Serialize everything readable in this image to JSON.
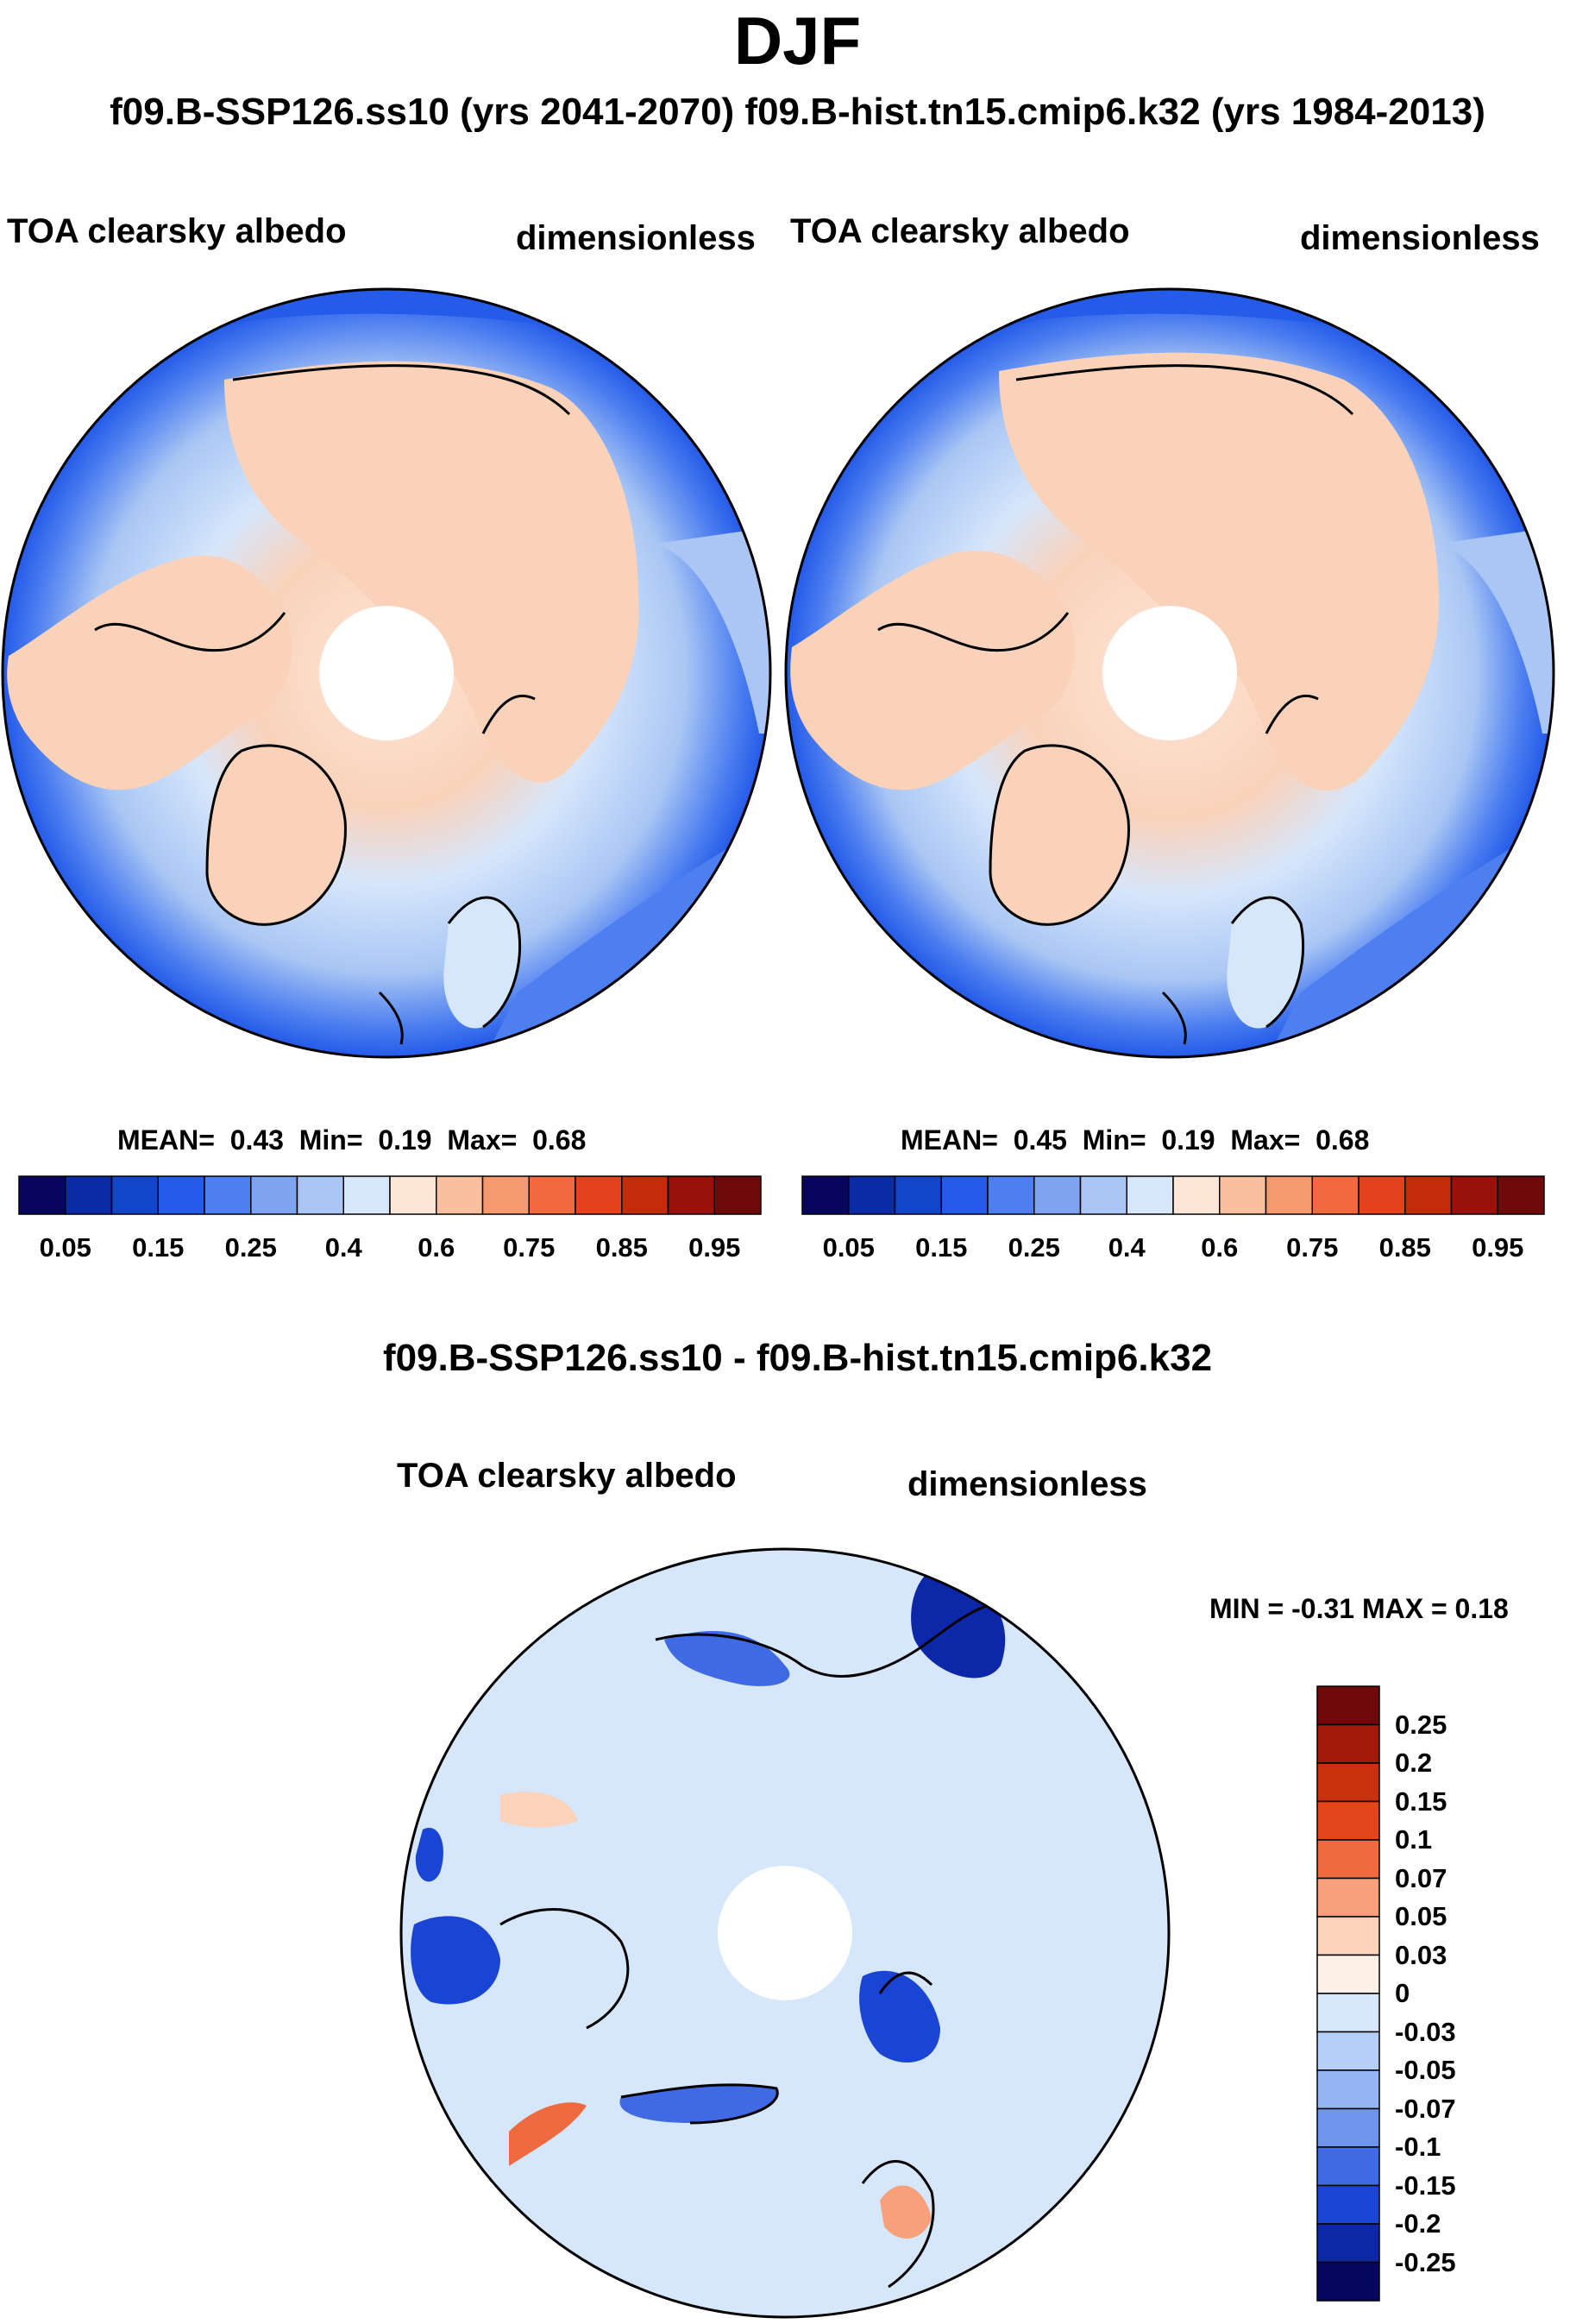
{
  "figure": {
    "season": "DJF",
    "subtitle": "f09.B-SSP126.ss10 (yrs 2041-2070)  f09.B-hist.tn15.cmip6.k32 (yrs 1984-2013)",
    "diff_title": "f09.B-SSP126.ss10 - f09.B-hist.tn15.cmip6.k32"
  },
  "panels": {
    "left": {
      "variable": "TOA clearsky albedo",
      "units": "dimensionless",
      "stats": {
        "mean_label": "MEAN=",
        "mean": "0.43",
        "min_label": "Min=",
        "min": "0.19",
        "max_label": "Max=",
        "max": "0.68"
      }
    },
    "right": {
      "variable": "TOA clearsky albedo",
      "units": "dimensionless",
      "stats": {
        "mean_label": "MEAN=",
        "mean": "0.45",
        "min_label": "Min=",
        "min": "0.19",
        "max_label": "Max=",
        "max": "0.68"
      }
    },
    "diff": {
      "variable": "TOA clearsky albedo",
      "units": "dimensionless",
      "minmax": "MIN =  -0.31 MAX =   0.18"
    }
  },
  "chart_data": [
    {
      "type": "heatmap",
      "title": "TOA clearsky albedo",
      "case": "f09.B-SSP126.ss10 (yrs 2041-2070)",
      "projection": "polar stereographic (Northern Hemisphere)",
      "mean": 0.43,
      "min": 0.19,
      "max": 0.68,
      "colorbar": {
        "levels": [
          0.05,
          0.1,
          0.15,
          0.2,
          0.25,
          0.3,
          0.35,
          0.4,
          0.5,
          0.6,
          0.7,
          0.75,
          0.8,
          0.85,
          0.9,
          0.95
        ],
        "tick_labels": [
          "0.05",
          "0.15",
          "0.25",
          "0.4",
          "0.6",
          "0.75",
          "0.85",
          "0.95"
        ],
        "colors": [
          "#08065c",
          "#0a2aa6",
          "#1244cc",
          "#245be8",
          "#4d7ff0",
          "#7ea4f0",
          "#a9c6f4",
          "#d6e6fb",
          "#fde6d6",
          "#f9c0a0",
          "#f59970",
          "#f16a3f",
          "#e4421d",
          "#c22c0b",
          "#99110a",
          "#6e0a0a"
        ]
      }
    },
    {
      "type": "heatmap",
      "title": "TOA clearsky albedo",
      "case": "f09.B-hist.tn15.cmip6.k32 (yrs 1984-2013)",
      "projection": "polar stereographic (Northern Hemisphere)",
      "mean": 0.45,
      "min": 0.19,
      "max": 0.68,
      "colorbar": {
        "levels": [
          0.05,
          0.1,
          0.15,
          0.2,
          0.25,
          0.3,
          0.35,
          0.4,
          0.5,
          0.6,
          0.7,
          0.75,
          0.8,
          0.85,
          0.9,
          0.95
        ],
        "tick_labels": [
          "0.05",
          "0.15",
          "0.25",
          "0.4",
          "0.6",
          "0.75",
          "0.85",
          "0.95"
        ],
        "colors": [
          "#08065c",
          "#0a2aa6",
          "#1244cc",
          "#245be8",
          "#4d7ff0",
          "#7ea4f0",
          "#a9c6f4",
          "#d6e6fb",
          "#fde6d6",
          "#f9c0a0",
          "#f59970",
          "#f16a3f",
          "#e4421d",
          "#c22c0b",
          "#99110a",
          "#6e0a0a"
        ]
      }
    },
    {
      "type": "heatmap",
      "title": "TOA clearsky albedo",
      "case": "f09.B-SSP126.ss10 - f09.B-hist.tn15.cmip6.k32",
      "projection": "polar stereographic (Northern Hemisphere)",
      "min": -0.31,
      "max": 0.18,
      "colorbar": {
        "orientation": "vertical",
        "tick_labels": [
          "0.25",
          "0.2",
          "0.15",
          "0.1",
          "0.07",
          "0.05",
          "0.03",
          "0",
          "-0.03",
          "-0.05",
          "-0.07",
          "-0.1",
          "-0.15",
          "-0.2",
          "-0.25"
        ],
        "colors": [
          "#6e0a0a",
          "#a31a0a",
          "#c8300e",
          "#e4451b",
          "#f06a40",
          "#f7a07a",
          "#fcd2b8",
          "#fdf0e6",
          "#d6e6fb",
          "#b5cff6",
          "#95b6f2",
          "#6e94ec",
          "#3f6ae4",
          "#1a44d4",
          "#0c28a8",
          "#06065e"
        ]
      }
    }
  ],
  "colors": {
    "land": "#fad2ba",
    "ocean_light": "#d6e6fb",
    "ocean_mid": "#7ea4f0",
    "ocean_deep": "#245be8",
    "diff_base": "#d6e6fb"
  }
}
